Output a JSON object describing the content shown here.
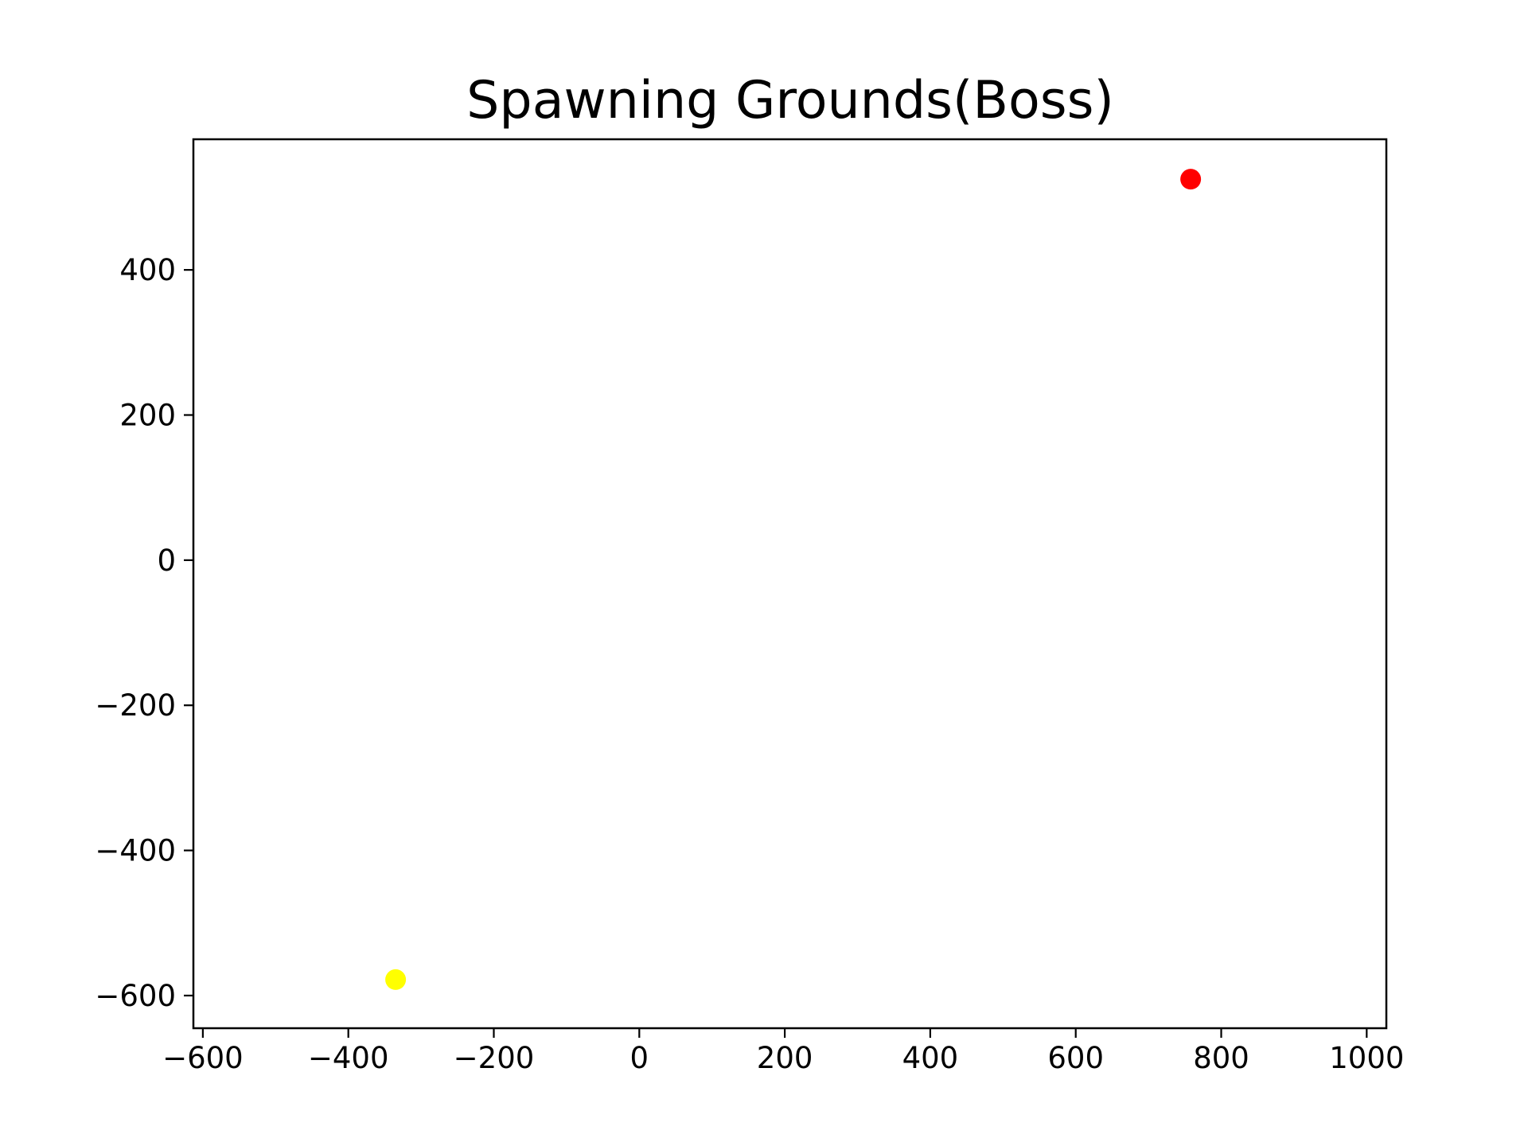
{
  "chart_data": {
    "type": "scatter",
    "title": "Spawning Grounds(Boss)",
    "xlabel": "",
    "ylabel": "",
    "xlim": [
      -613,
      1027
    ],
    "ylim": [
      -645,
      580
    ],
    "xticks": [
      -600,
      -400,
      -200,
      0,
      200,
      400,
      600,
      800,
      1000
    ],
    "xtick_labels": [
      "−600",
      "−400",
      "−200",
      "0",
      "200",
      "400",
      "600",
      "800",
      "1000"
    ],
    "yticks": [
      -600,
      -400,
      -200,
      0,
      200,
      400
    ],
    "ytick_labels": [
      "−600",
      "−400",
      "−200",
      "0",
      "200",
      "400"
    ],
    "grid": false,
    "legend": "none",
    "points": [
      {
        "x": 758,
        "y": 525,
        "color": "#ff0000"
      },
      {
        "x": -335,
        "y": -578,
        "color": "#ffff00"
      }
    ]
  }
}
